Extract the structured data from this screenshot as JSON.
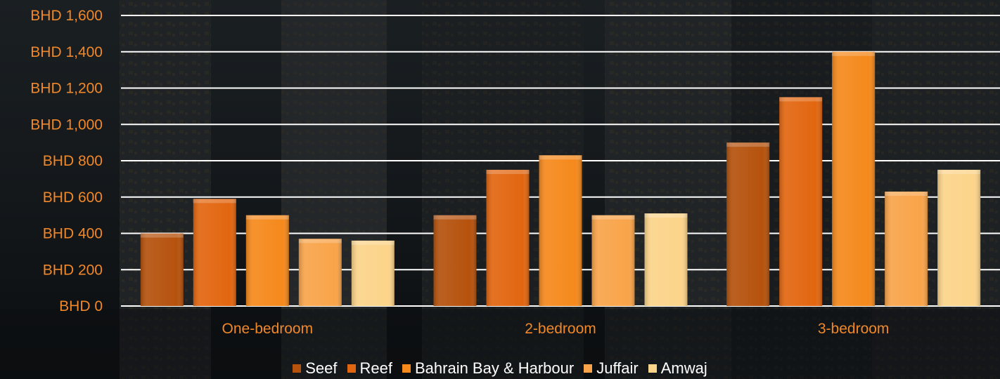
{
  "colors": {
    "tick_label": "#f0882a",
    "gridline": "#ffffff",
    "legend_text": "#ffffff"
  },
  "chart_data": {
    "type": "bar",
    "title": "",
    "xlabel": "",
    "ylabel": "",
    "categories": [
      "One-bedroom",
      "2-bedroom",
      "3-bedroom"
    ],
    "series": [
      {
        "name": "Seef",
        "color": "#b5520d",
        "values": [
          400,
          500,
          900
        ]
      },
      {
        "name": "Reef",
        "color": "#e26610",
        "values": [
          590,
          750,
          1150
        ]
      },
      {
        "name": "Bahrain Bay & Harbour",
        "color": "#f5891c",
        "values": [
          500,
          830,
          1400
        ]
      },
      {
        "name": "Juffair",
        "color": "#f9a44a",
        "values": [
          370,
          500,
          630
        ]
      },
      {
        "name": "Amwaj",
        "color": "#fcd48a",
        "values": [
          360,
          510,
          750
        ]
      }
    ],
    "ylim": [
      0,
      1600
    ],
    "yticks": [
      0,
      200,
      400,
      600,
      800,
      1000,
      1200,
      1400,
      1600
    ],
    "ytick_labels": [
      "BHD 0",
      "BHD 200",
      "BHD 400",
      "BHD 600",
      "BHD 800",
      "BHD 1,000",
      "BHD 1,200",
      "BHD 1,400",
      "BHD 1,600"
    ],
    "grid": true,
    "legend_position": "bottom"
  }
}
